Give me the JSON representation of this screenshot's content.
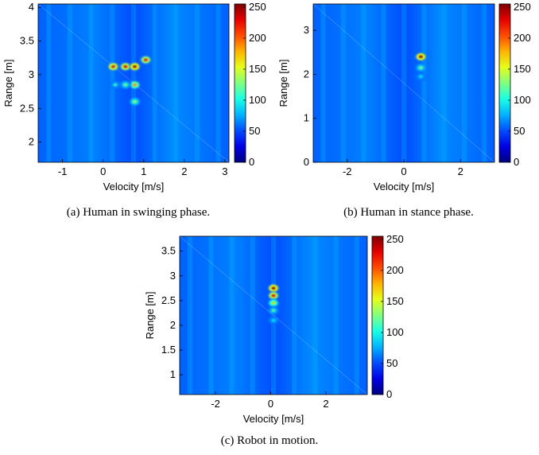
{
  "figure": {
    "captions": [
      "(a) Human in swinging phase.",
      "(b) Human in stance phase.",
      "(c) Robot in motion."
    ]
  },
  "chart_data": [
    {
      "type": "heatmap",
      "caption": "(a) Human in swinging phase.",
      "xlabel": "Velocity [m/s]",
      "ylabel": "Range [m]",
      "xlim": [
        -1.6,
        3.1
      ],
      "ylim": [
        1.7,
        4.05
      ],
      "xticks": [
        -1,
        0,
        1,
        2,
        3
      ],
      "yticks": [
        2,
        2.5,
        3,
        3.5,
        4
      ],
      "colorbar": {
        "min": 0,
        "max": 255,
        "ticks": [
          0,
          50,
          100,
          150,
          200,
          250
        ]
      },
      "colormap": "jet",
      "peaks": [
        {
          "velocity": 0.25,
          "range": 3.12,
          "intensity": 240
        },
        {
          "velocity": 0.55,
          "range": 3.12,
          "intensity": 235
        },
        {
          "velocity": 0.78,
          "range": 3.12,
          "intensity": 255
        },
        {
          "velocity": 1.05,
          "range": 3.22,
          "intensity": 220
        },
        {
          "velocity": 0.78,
          "range": 2.85,
          "intensity": 190
        },
        {
          "velocity": 0.55,
          "range": 2.85,
          "intensity": 130
        },
        {
          "velocity": 0.78,
          "range": 2.6,
          "intensity": 140
        },
        {
          "velocity": 0.3,
          "range": 2.85,
          "intensity": 110
        }
      ]
    },
    {
      "type": "heatmap",
      "caption": "(b) Human in stance phase.",
      "xlabel": "Velocity [m/s]",
      "ylabel": "Range [m]",
      "xlim": [
        -3.2,
        3.2
      ],
      "ylim": [
        0,
        3.6
      ],
      "xticks": [
        -2,
        0,
        2
      ],
      "yticks": [
        0,
        1,
        2,
        3
      ],
      "colorbar": {
        "min": 0,
        "max": 255,
        "ticks": [
          0,
          50,
          100,
          150,
          200,
          250
        ]
      },
      "colormap": "jet",
      "peaks": [
        {
          "velocity": 0.6,
          "range": 2.4,
          "intensity": 255
        },
        {
          "velocity": 0.6,
          "range": 2.15,
          "intensity": 130
        },
        {
          "velocity": 0.6,
          "range": 1.95,
          "intensity": 90
        }
      ]
    },
    {
      "type": "heatmap",
      "caption": "(c) Robot in motion.",
      "xlabel": "Velocity [m/s]",
      "ylabel": "Range [m]",
      "xlim": [
        -3.3,
        3.5
      ],
      "ylim": [
        0.6,
        3.8
      ],
      "xticks": [
        -2,
        0,
        2
      ],
      "yticks": [
        1,
        1.5,
        2,
        2.5,
        3,
        3.5
      ],
      "colorbar": {
        "min": 0,
        "max": 255,
        "ticks": [
          0,
          50,
          100,
          150,
          200,
          250
        ]
      },
      "colormap": "jet",
      "peaks": [
        {
          "velocity": 0.1,
          "range": 2.75,
          "intensity": 255
        },
        {
          "velocity": 0.1,
          "range": 2.6,
          "intensity": 230
        },
        {
          "velocity": 0.1,
          "range": 2.45,
          "intensity": 170
        },
        {
          "velocity": 0.1,
          "range": 2.3,
          "intensity": 120
        },
        {
          "velocity": 0.1,
          "range": 2.1,
          "intensity": 90
        }
      ]
    }
  ]
}
